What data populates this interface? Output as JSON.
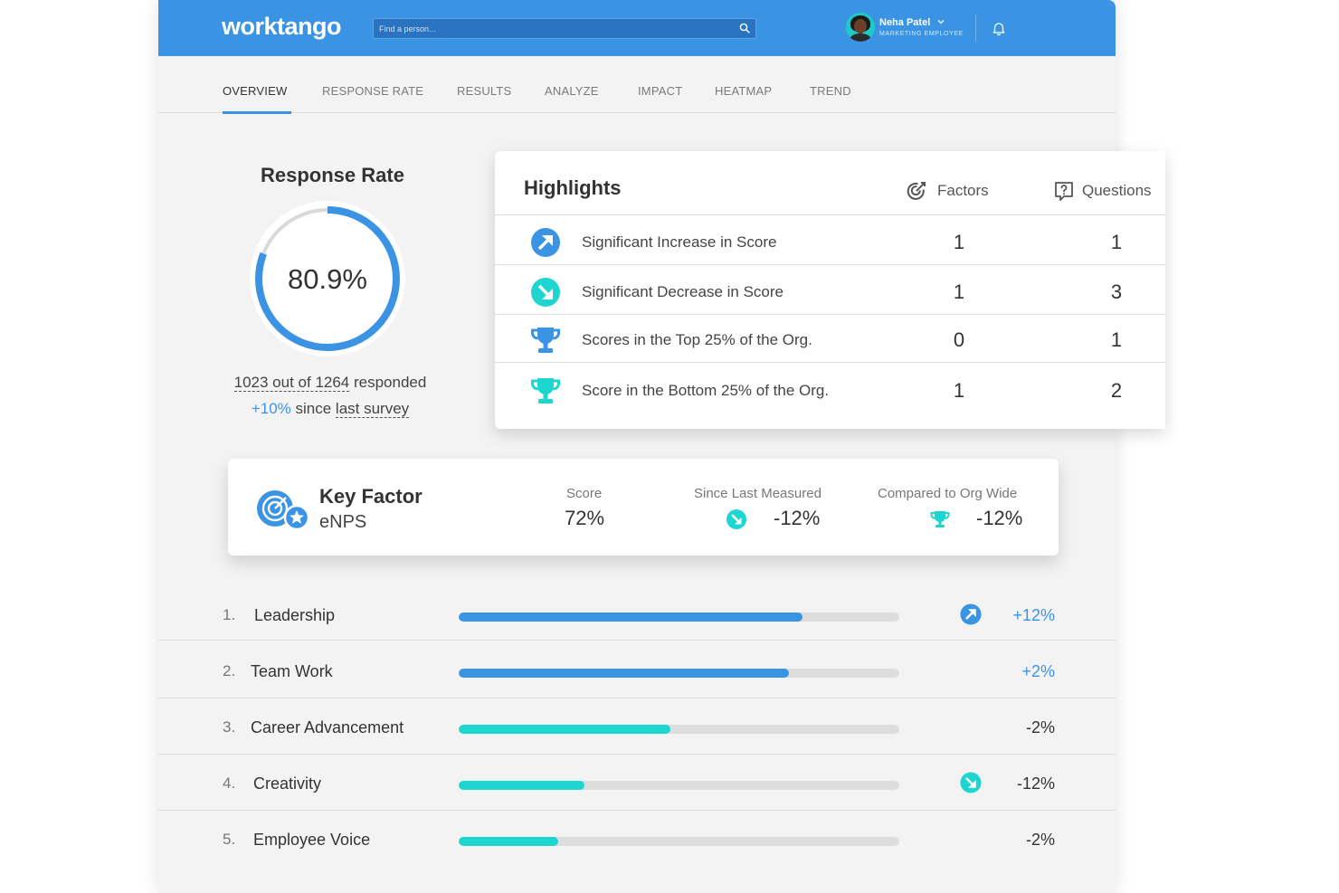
{
  "header": {
    "logo": "worktango",
    "search_placeholder": "Find a person...",
    "user_name": "Neha Patel",
    "user_role": "MARKETING EMPLOYEE"
  },
  "tabs": [
    {
      "label": "OVERVIEW",
      "active": true
    },
    {
      "label": "RESPONSE RATE",
      "active": false
    },
    {
      "label": "RESULTS",
      "active": false
    },
    {
      "label": "ANALYZE",
      "active": false
    },
    {
      "label": "IMPACT",
      "active": false
    },
    {
      "label": "HEATMAP",
      "active": false
    },
    {
      "label": "TREND",
      "active": false
    }
  ],
  "response_rate": {
    "title": "Response Rate",
    "percent_label": "80.9%",
    "percent_value": 80.9,
    "responded_label": "1023 out of 1264",
    "responded_suffix": " responded",
    "change_label": "+10%",
    "change_suffix_1": " since ",
    "change_suffix_2": "last survey"
  },
  "highlights": {
    "title": "Highlights",
    "col_factors": "Factors",
    "col_questions": "Questions",
    "rows": [
      {
        "label": "Significant Increase in Score",
        "factors": "1",
        "questions": "1",
        "icon": "arrow-up-right-icon"
      },
      {
        "label": "Significant Decrease in Score",
        "factors": "1",
        "questions": "3",
        "icon": "arrow-down-right-icon"
      },
      {
        "label": "Scores in the Top 25% of the Org.",
        "factors": "0",
        "questions": "1",
        "icon": "trophy-icon"
      },
      {
        "label": "Score in the Bottom 25% of the Org.",
        "factors": "1",
        "questions": "2",
        "icon": "trophy-icon"
      }
    ]
  },
  "key_factor": {
    "title": "Key Factor",
    "name": "eNPS",
    "score_label": "Score",
    "score_value": "72%",
    "since_label": "Since Last Measured",
    "since_value": "-12%",
    "org_label": "Compared to Org Wide",
    "org_value": "-12%"
  },
  "factors": [
    {
      "num": "1.",
      "label": "Leadership",
      "fill": 0.78,
      "change": "+12%",
      "color": "#3b94e3",
      "change_color": "#3b94e3",
      "icon": "arrow-up-right-icon"
    },
    {
      "num": "2.",
      "label": "Team Work",
      "fill": 0.75,
      "change": "+2%",
      "color": "#3b94e3",
      "change_color": "#3b94e3",
      "icon": ""
    },
    {
      "num": "3.",
      "label": "Career Advancement",
      "fill": 0.48,
      "change": "-2%",
      "color": "#1ed6d0",
      "change_color": "#333333",
      "icon": ""
    },
    {
      "num": "4.",
      "label": "Creativity",
      "fill": 0.285,
      "change": "-12%",
      "color": "#1ed6d0",
      "change_color": "#333333",
      "icon": "arrow-down-right-icon"
    },
    {
      "num": "5.",
      "label": "Employee Voice",
      "fill": 0.225,
      "change": "-2%",
      "color": "#1ed6d0",
      "change_color": "#333333",
      "icon": ""
    }
  ],
  "colors": {
    "accent_blue": "#3b94e3",
    "accent_teal": "#1ed6d0"
  }
}
